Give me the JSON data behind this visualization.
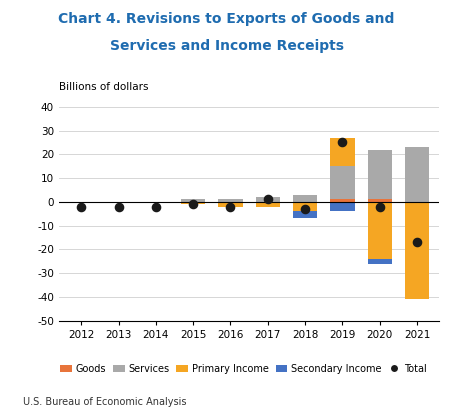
{
  "title_line1": "Chart 4. Revisions to Exports of Goods and",
  "title_line2": "Services and Income Receipts",
  "ylabel": "Billions of dollars",
  "footnote": "U.S. Bureau of Economic Analysis",
  "years": [
    2012,
    2013,
    2014,
    2015,
    2016,
    2017,
    2018,
    2019,
    2020,
    2021
  ],
  "goods": [
    0,
    0,
    0,
    0,
    0,
    0,
    0,
    1,
    1,
    0
  ],
  "services": [
    0,
    0,
    0,
    1,
    1,
    2,
    3,
    14,
    21,
    23
  ],
  "primary_income": [
    0,
    0,
    0,
    -1,
    -2,
    -2,
    -4,
    12,
    -24,
    -41
  ],
  "secondary_income": [
    0,
    0,
    0,
    0,
    0,
    0,
    -3,
    -4,
    -2,
    0
  ],
  "total": [
    -2,
    -2,
    -2,
    -1,
    -2,
    1,
    -3,
    25,
    -2,
    -17
  ],
  "ylim": [
    -50,
    40
  ],
  "yticks": [
    -50,
    -40,
    -30,
    -20,
    -10,
    0,
    10,
    20,
    30,
    40
  ],
  "colors": {
    "goods": "#E8743B",
    "services": "#A9A9A9",
    "primary_income": "#F5A623",
    "secondary_income": "#4472C4",
    "total": "#1a1a1a"
  },
  "title_color": "#1F6CB0",
  "background_color": "#ffffff"
}
